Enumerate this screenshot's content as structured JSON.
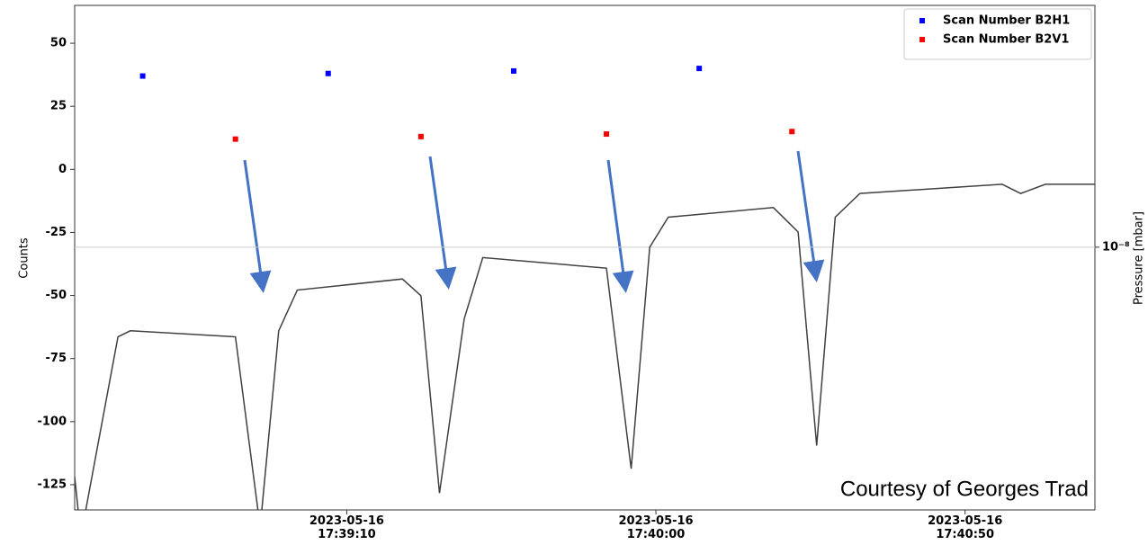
{
  "chart_data": {
    "type": "scatter",
    "annotation": "Courtesy of Georges Trad",
    "ylabel": "Counts",
    "y2label": "Pressure [mbar]",
    "xlim": [
      "2023-05-16 17:38:26",
      "2023-05-16 17:41:11"
    ],
    "xticks": [
      {
        "value": "2023-05-16 17:39:10",
        "label": "2023-05-16\n17:39:10"
      },
      {
        "value": "2023-05-16 17:40:00",
        "label": "2023-05-16\n17:40:00"
      },
      {
        "value": "2023-05-16 17:40:50",
        "label": "2023-05-16\n17:40:50"
      }
    ],
    "ylim": [
      -135,
      65
    ],
    "yticks": [
      -125,
      -100,
      -75,
      -50,
      -25,
      0,
      25,
      50
    ],
    "y2lim": [
      6e-09,
      1.6e-08
    ],
    "y2ticks": [
      {
        "value": 1e-08,
        "label": "10⁻⁸"
      }
    ],
    "y2scale": "log",
    "y2grid": true,
    "legend": "upper right",
    "series": [
      {
        "name": "Scan Number B2H1",
        "color": "#0000ff",
        "x": [
          "2023-05-16 17:38:37",
          "2023-05-16 17:39:07",
          "2023-05-16 17:39:37",
          "2023-05-16 17:40:07"
        ],
        "values": [
          37,
          38,
          39,
          40
        ]
      },
      {
        "name": "Scan Number B2V1",
        "color": "#ff0000",
        "x": [
          "2023-05-16 17:38:52",
          "2023-05-16 17:39:22",
          "2023-05-16 17:39:52",
          "2023-05-16 17:40:22"
        ],
        "values": [
          12,
          13,
          14,
          15
        ]
      },
      {
        "type": "line",
        "axis": "y2",
        "color": "#404040",
        "x": [
          "2023-05-16 17:38:26",
          "2023-05-16 17:38:27",
          "2023-05-16 17:38:33",
          "2023-05-16 17:38:35",
          "2023-05-16 17:38:52",
          "2023-05-16 17:38:56",
          "2023-05-16 17:38:59",
          "2023-05-16 17:39:02",
          "2023-05-16 17:39:19",
          "2023-05-16 17:39:22",
          "2023-05-16 17:39:25",
          "2023-05-16 17:39:29",
          "2023-05-16 17:39:32",
          "2023-05-16 17:39:52",
          "2023-05-16 17:39:56",
          "2023-05-16 17:39:59",
          "2023-05-16 17:40:02",
          "2023-05-16 17:40:19",
          "2023-05-16 17:40:23",
          "2023-05-16 17:40:26",
          "2023-05-16 17:40:29",
          "2023-05-16 17:40:33",
          "2023-05-16 17:40:56",
          "2023-05-16 17:40:59",
          "2023-05-16 17:41:03",
          "2023-05-16 17:41:11"
        ],
        "values": [
          6.4e-09,
          5.7e-09,
          8.4e-09,
          8.5e-09,
          8.4e-09,
          5.8e-09,
          8.5e-09,
          9.2e-09,
          9.4e-09,
          9.1e-09,
          6.2e-09,
          8.7e-09,
          9.8e-09,
          9.6e-09,
          6.5e-09,
          1e-08,
          1.06e-08,
          1.08e-08,
          1.03e-08,
          6.8e-09,
          1.06e-08,
          1.11e-08,
          1.13e-08,
          1.11e-08,
          1.13e-08,
          1.13e-08
        ]
      }
    ]
  }
}
